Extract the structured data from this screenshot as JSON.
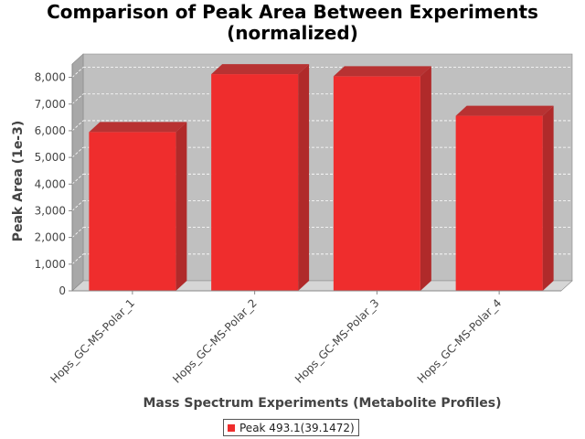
{
  "chart_data": {
    "type": "bar",
    "title_line1": "Comparison of Peak Area Between Experiments",
    "title_line2": "(normalized)",
    "xlabel": "Mass Spectrum Experiments (Metabolite Profiles)",
    "ylabel": "Peak Area (1e-3)",
    "categories": [
      "Hops_GC-MS-Polar_1",
      "Hops_GC-MS-Polar_2",
      "Hops_GC-MS-Polar_3",
      "Hops_GC-MS-Polar_4"
    ],
    "series": [
      {
        "name": "Peak 493.1(39.1472)",
        "values": [
          5950,
          8120,
          8040,
          6560
        ],
        "color": "#ef2d2d"
      }
    ],
    "ylim": [
      0,
      8500
    ],
    "yticks": [
      0,
      1000,
      2000,
      3000,
      4000,
      5000,
      6000,
      7000,
      8000
    ],
    "ytick_labels": [
      "0",
      "1,000",
      "2,000",
      "3,000",
      "4,000",
      "5,000",
      "6,000",
      "7,000",
      "8,000"
    ],
    "grid": true,
    "legend_position": "bottom",
    "plot_background": "#c0c0c0",
    "style": "3d"
  }
}
